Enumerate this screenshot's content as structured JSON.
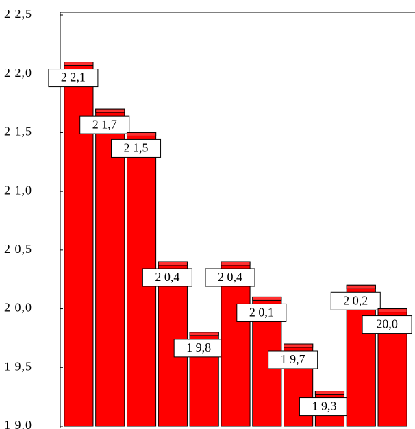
{
  "chart_data": {
    "type": "bar",
    "categories": [
      null,
      null,
      null,
      null,
      null,
      null,
      null,
      null,
      null,
      null,
      null
    ],
    "values": [
      22.1,
      21.7,
      21.5,
      20.4,
      19.8,
      20.4,
      20.1,
      19.7,
      19.3,
      20.2,
      20.0
    ],
    "value_labels": [
      "2 2,1",
      "2 1,7",
      "2 1,5",
      "2 0,4",
      "1 9,8",
      "2 0,4",
      "2 0,1",
      "1 9,7",
      "1 9,3",
      "2 0,2",
      "20,0"
    ],
    "color": "#ff0000",
    "ylim": [
      19.0,
      22.5
    ],
    "yticks": [
      {
        "value": 19.0,
        "label": "1 9.0"
      },
      {
        "value": 19.5,
        "label": "1 9,5"
      },
      {
        "value": 20.0,
        "label": "2 0,0"
      },
      {
        "value": 20.5,
        "label": "2 0,5"
      },
      {
        "value": 21.0,
        "label": "2 1,0"
      },
      {
        "value": 21.5,
        "label": "2 1,5"
      },
      {
        "value": 22.0,
        "label": "2 2,0"
      },
      {
        "value": 22.5,
        "label": "2 2,5"
      }
    ],
    "grid": false
  }
}
